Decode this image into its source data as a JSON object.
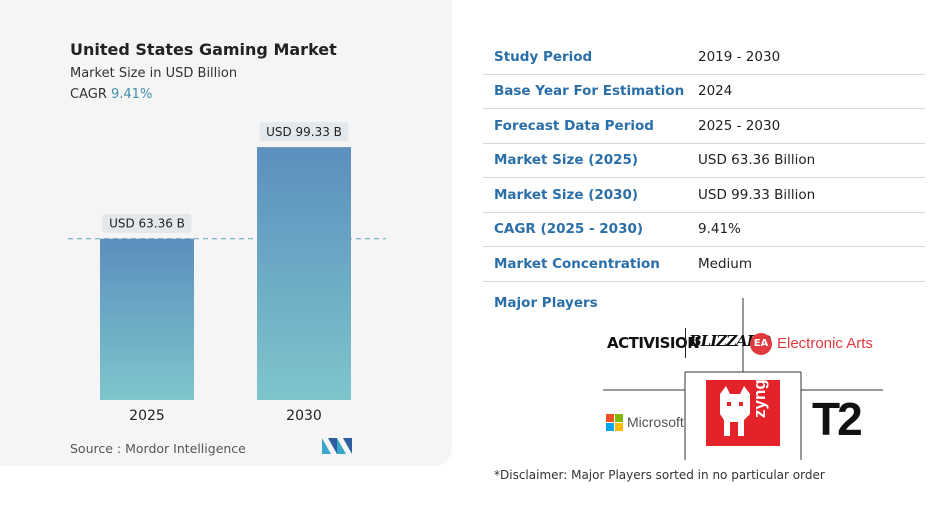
{
  "header": {
    "title": "United States Gaming Market",
    "subtitle": "Market Size in USD Billion",
    "cagr_label": "CAGR",
    "cagr_value": "9.41%"
  },
  "chart_data": {
    "type": "bar",
    "categories": [
      "2025",
      "2030"
    ],
    "values": [
      63.36,
      99.33
    ],
    "value_labels": [
      "USD 63.36 B",
      "USD 99.33 B"
    ],
    "ylim": [
      0,
      110
    ],
    "grid": false,
    "reference_line": 63.36,
    "bar_gradient": [
      "#5c8fbd",
      "#7ec5cc"
    ]
  },
  "source": "Source :  Mordor Intelligence",
  "table": [
    {
      "key": "Study Period",
      "value": "2019 - 2030"
    },
    {
      "key": "Base Year For Estimation",
      "value": "2024"
    },
    {
      "key": "Forecast Data Period",
      "value": "2025 - 2030"
    },
    {
      "key": "Market Size (2025)",
      "value": "USD 63.36 Billion"
    },
    {
      "key": "Market Size (2030)",
      "value": "USD 99.33 Billion"
    },
    {
      "key": "CAGR (2025 - 2030)",
      "value": "9.41%"
    },
    {
      "key": "Market Concentration",
      "value": "Medium"
    }
  ],
  "major_players_label": "Major Players",
  "players": {
    "activision": "ACTIVISION",
    "blizzard": "BLIZZARD",
    "ea_badge": "EA",
    "ea_name": "Electronic Arts",
    "microsoft": "Microsoft",
    "zynga": "zynga",
    "t2": "T2"
  },
  "disclaimer": "*Disclaimer: Major Players sorted in no particular order",
  "colors": {
    "accent_blue": "#2b6fa8",
    "cagr_teal": "#3f8fa8",
    "zynga_red": "#e42229",
    "ea_red": "#e03a3e"
  }
}
